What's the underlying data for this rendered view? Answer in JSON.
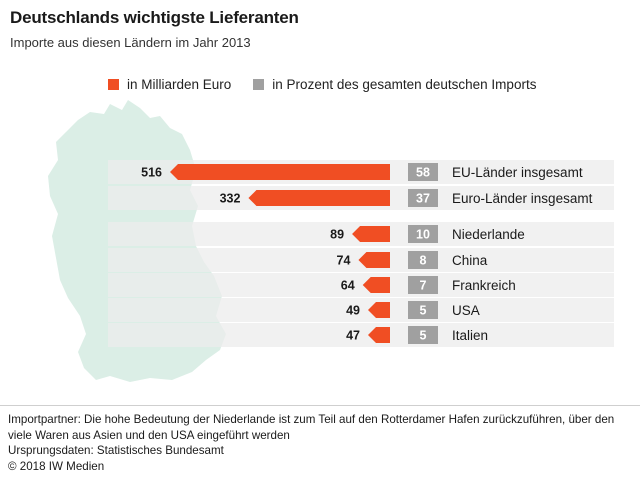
{
  "title": "Deutschlands wichtigste Lieferanten",
  "subtitle": "Importe aus diesen Ländern im Jahr 2013",
  "legend": {
    "value_label": "in Milliarden Euro",
    "share_label": "in Prozent des gesamten deutschen Imports"
  },
  "colors": {
    "value": "#f04e23",
    "share": "#a0a0a0",
    "row_bg": "#ececec",
    "map": "#dbeee6"
  },
  "chart_data": {
    "type": "bar",
    "categories": [
      "EU-Länder insgesamt",
      "Euro-Länder insgesamt",
      "Niederlande",
      "China",
      "Frankreich",
      "USA",
      "Italien"
    ],
    "series": [
      {
        "name": "in Milliarden Euro",
        "values": [
          516,
          332,
          89,
          74,
          64,
          49,
          47
        ]
      },
      {
        "name": "in Prozent des gesamten deutschen Imports",
        "values": [
          58,
          37,
          10,
          8,
          7,
          5,
          5
        ]
      }
    ],
    "value_labels": [
      "516",
      "332",
      "89",
      "74",
      "64",
      "49",
      "47"
    ],
    "share_labels": [
      "58",
      "37",
      "10",
      "8",
      "7",
      "5",
      "5"
    ]
  },
  "footnotes": [
    "Importpartner: Die hohe Bedeutung der Niederlande ist zum Teil auf den Rotterdamer Hafen zurückzuführen, über den viele Waren aus Asien und den USA eingeführt werden",
    "Ursprungsdaten: Statistisches Bundesamt",
    "© 2018 IW Medien"
  ]
}
